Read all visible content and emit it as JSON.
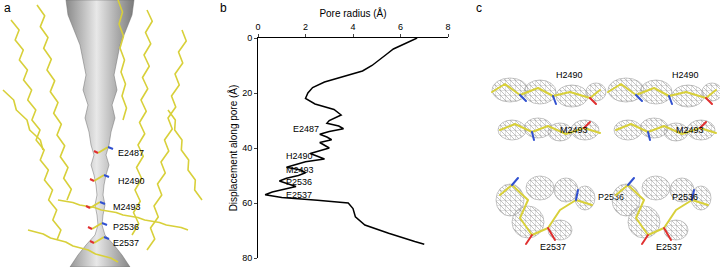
{
  "panels": [
    {
      "label": "a",
      "residues": [
        "E2487",
        "H2490",
        "M2493",
        "P2536",
        "E2537"
      ]
    },
    {
      "label": "b"
    },
    {
      "label": "c",
      "residues": [
        "H2490",
        "M2493",
        "P2536",
        "E2537"
      ]
    }
  ],
  "chart_data": {
    "type": "line",
    "x_label": "Pore radius (Å)",
    "y_label": "Displacement along pore (Å)",
    "x": [
      6.7,
      6.2,
      5.7,
      5.4,
      5.1,
      4.8,
      4.4,
      3.6,
      2.8,
      2.3,
      2.1,
      2.0,
      2.4,
      3.2,
      3.5,
      3.0,
      2.9,
      3.4,
      3.6,
      3.0,
      2.6,
      2.9,
      3.1,
      2.6,
      3.0,
      2.2,
      2.5,
      2.8,
      2.0,
      1.6,
      1.2,
      1.8,
      2.0,
      1.7,
      1.2,
      0.9,
      1.3,
      1.6,
      1.1,
      0.6,
      0.3,
      1.0,
      2.5,
      3.8,
      4.0,
      4.1,
      4.5,
      5.5,
      6.6,
      7.0
    ],
    "values": [
      0,
      2,
      4,
      6,
      8,
      10,
      12,
      14,
      16,
      18,
      20,
      22,
      24,
      26,
      28,
      30,
      31,
      32,
      33,
      34,
      35,
      36,
      37,
      38,
      40,
      42,
      43,
      44,
      45,
      46,
      47,
      48,
      49,
      50,
      51,
      52,
      53,
      54,
      55,
      56,
      57,
      58,
      59,
      60,
      62,
      65,
      68,
      71,
      74,
      75
    ],
    "color": "#000000",
    "xlim": [
      0,
      8
    ],
    "xticks": [
      0,
      2,
      4,
      6,
      8
    ],
    "ylim": [
      80,
      0
    ],
    "yticks": [
      0,
      20,
      40,
      60,
      80
    ],
    "grid": false,
    "annotations": [
      {
        "text": "E2487",
        "x": 1.4,
        "y": 33
      },
      {
        "text": "H2490",
        "x": 1.1,
        "y": 43
      },
      {
        "text": "M2493",
        "x": 1.1,
        "y": 48
      },
      {
        "text": "P2536",
        "x": 1.1,
        "y": 52.5
      },
      {
        "text": "E2537",
        "x": 1.1,
        "y": 57
      }
    ]
  }
}
